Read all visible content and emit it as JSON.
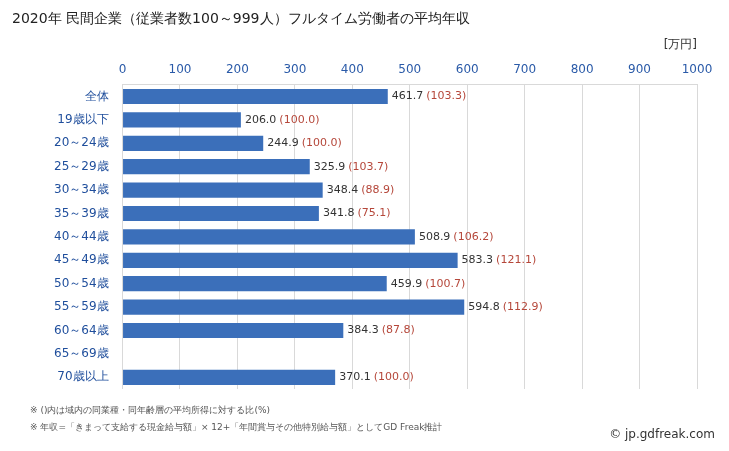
{
  "chart_data": {
    "type": "bar",
    "title": "2020年 民間企業（従業者数100～999人）フルタイム労働者の平均年収",
    "xlabel": "[万円]",
    "categories": [
      "全体",
      "19歳以下",
      "20～24歳",
      "25～29歳",
      "30～34歳",
      "35～39歳",
      "40～44歳",
      "45～49歳",
      "50～54歳",
      "55～59歳",
      "60～64歳",
      "65～69歳",
      "70歳以上"
    ],
    "values": [
      461.7,
      206.0,
      244.9,
      325.9,
      348.4,
      341.8,
      508.9,
      583.3,
      459.9,
      594.8,
      384.3,
      null,
      370.1
    ],
    "value_labels": [
      "461.7",
      "206.0",
      "244.9",
      "325.9",
      "348.4",
      "341.8",
      "508.9",
      "583.3",
      "459.9",
      "594.8",
      "384.3",
      null,
      "370.1"
    ],
    "ratio_labels": [
      "(103.3)",
      "(100.0)",
      "(100.0)",
      "(103.7)",
      "(88.9)",
      "(75.1)",
      "(106.2)",
      "(121.1)",
      "(100.7)",
      "(112.9)",
      "(87.8)",
      null,
      "(100.0)"
    ],
    "color": "#3b6fba",
    "orientation": "horizontal",
    "xlim": [
      0,
      1000
    ],
    "xticks": [
      0,
      100,
      200,
      300,
      400,
      500,
      600,
      700,
      800,
      900,
      1000
    ],
    "grid": true,
    "data_labels": true,
    "annotations": [
      "※ ()内は域内の同業種・同年齢層の平均所得に対する比(%)",
      "※ 年収=「きまって支給する現金給与額」× 12+「年間賞与その他特別給与額」としてGD Freak推計"
    ],
    "source": "© jp.gdfreak.com"
  }
}
